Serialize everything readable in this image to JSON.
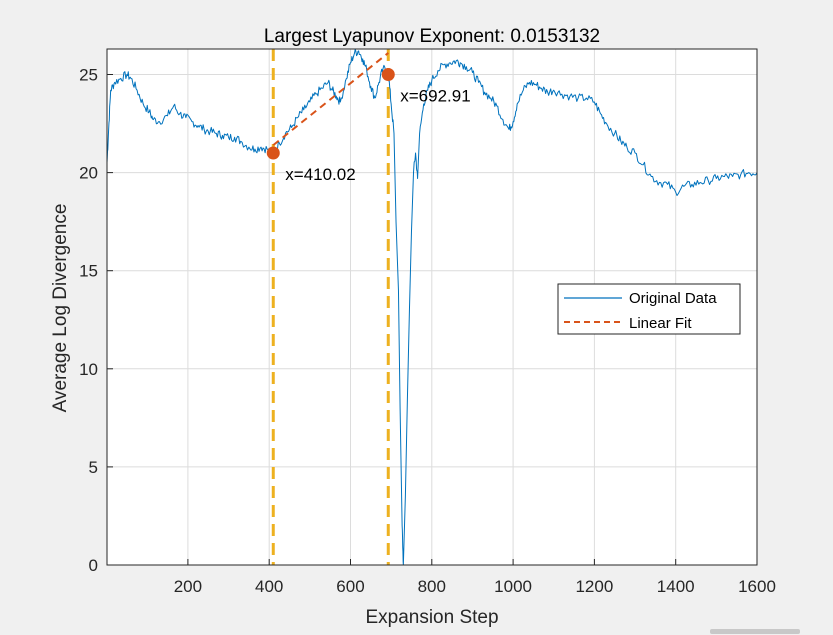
{
  "chart_data": {
    "type": "line",
    "title": "Largest Lyapunov Exponent: 0.0153132",
    "xlabel": "Expansion Step",
    "ylabel": "Average Log Divergence",
    "xlim": [
      1,
      1600
    ],
    "ylim": [
      0,
      26.3
    ],
    "xticks": [
      200,
      400,
      600,
      800,
      1000,
      1200,
      1400,
      1600
    ],
    "yticks": [
      0,
      5,
      10,
      15,
      20,
      25
    ],
    "grid": true,
    "legend_placement": "right",
    "series": [
      {
        "name": "Original Data",
        "color": "#0072BD",
        "points": [
          [
            1,
            20.5
          ],
          [
            5,
            22.2
          ],
          [
            10,
            24.2
          ],
          [
            20,
            24.6
          ],
          [
            35,
            24.8
          ],
          [
            50,
            25.0
          ],
          [
            60,
            24.8
          ],
          [
            75,
            24.2
          ],
          [
            90,
            23.5
          ],
          [
            105,
            23.1
          ],
          [
            115,
            22.7
          ],
          [
            130,
            22.6
          ],
          [
            150,
            22.9
          ],
          [
            165,
            23.4
          ],
          [
            180,
            23.0
          ],
          [
            195,
            22.8
          ],
          [
            210,
            22.6
          ],
          [
            225,
            22.4
          ],
          [
            240,
            22.2
          ],
          [
            255,
            22.1
          ],
          [
            270,
            22.0
          ],
          [
            285,
            21.9
          ],
          [
            300,
            21.8
          ],
          [
            315,
            21.8
          ],
          [
            330,
            21.6
          ],
          [
            350,
            21.3
          ],
          [
            365,
            21.2
          ],
          [
            380,
            21.3
          ],
          [
            395,
            21.2
          ],
          [
            410,
            21.0
          ],
          [
            425,
            21.5
          ],
          [
            440,
            22.0
          ],
          [
            455,
            22.3
          ],
          [
            470,
            22.8
          ],
          [
            485,
            23.2
          ],
          [
            500,
            23.6
          ],
          [
            515,
            24.0
          ],
          [
            530,
            24.3
          ],
          [
            545,
            24.6
          ],
          [
            555,
            24.2
          ],
          [
            565,
            23.9
          ],
          [
            575,
            23.6
          ],
          [
            590,
            24.8
          ],
          [
            600,
            25.6
          ],
          [
            610,
            26.1
          ],
          [
            620,
            26.2
          ],
          [
            630,
            25.8
          ],
          [
            640,
            25.2
          ],
          [
            650,
            24.4
          ],
          [
            660,
            23.8
          ],
          [
            670,
            24.6
          ],
          [
            680,
            25.3
          ],
          [
            693,
            25.1
          ],
          [
            700,
            23.5
          ],
          [
            707,
            22.0
          ],
          [
            712,
            17.5
          ],
          [
            718,
            14.0
          ],
          [
            722,
            8.0
          ],
          [
            727,
            2.0
          ],
          [
            730,
            0.0
          ],
          [
            735,
            3.5
          ],
          [
            740,
            8.5
          ],
          [
            745,
            13.0
          ],
          [
            750,
            17.0
          ],
          [
            755,
            20.0
          ],
          [
            760,
            21.0
          ],
          [
            765,
            19.7
          ],
          [
            770,
            22.0
          ],
          [
            780,
            23.5
          ],
          [
            790,
            24.2
          ],
          [
            800,
            24.7
          ],
          [
            815,
            25.2
          ],
          [
            830,
            25.5
          ],
          [
            845,
            25.6
          ],
          [
            860,
            25.7
          ],
          [
            870,
            25.6
          ],
          [
            885,
            25.4
          ],
          [
            900,
            25.1
          ],
          [
            915,
            24.6
          ],
          [
            930,
            24.1
          ],
          [
            945,
            23.8
          ],
          [
            960,
            23.4
          ],
          [
            975,
            22.7
          ],
          [
            990,
            22.2
          ],
          [
            1000,
            22.6
          ],
          [
            1010,
            23.5
          ],
          [
            1025,
            24.2
          ],
          [
            1040,
            24.6
          ],
          [
            1055,
            24.5
          ],
          [
            1070,
            24.3
          ],
          [
            1085,
            24.1
          ],
          [
            1100,
            24.2
          ],
          [
            1120,
            24.0
          ],
          [
            1140,
            23.9
          ],
          [
            1160,
            23.8
          ],
          [
            1180,
            23.8
          ],
          [
            1200,
            23.6
          ],
          [
            1215,
            23.0
          ],
          [
            1230,
            22.5
          ],
          [
            1250,
            22.0
          ],
          [
            1265,
            21.6
          ],
          [
            1280,
            21.3
          ],
          [
            1300,
            21.0
          ],
          [
            1320,
            20.4
          ],
          [
            1340,
            19.8
          ],
          [
            1360,
            19.5
          ],
          [
            1380,
            19.4
          ],
          [
            1400,
            19.0
          ],
          [
            1420,
            19.3
          ],
          [
            1440,
            19.4
          ],
          [
            1460,
            19.5
          ],
          [
            1480,
            19.6
          ],
          [
            1500,
            19.7
          ],
          [
            1520,
            19.8
          ],
          [
            1540,
            19.8
          ],
          [
            1560,
            19.9
          ],
          [
            1580,
            20.0
          ],
          [
            1600,
            20.0
          ]
        ]
      },
      {
        "name": "Linear Fit",
        "color": "#D95319",
        "style": "dashed",
        "points": [
          [
            410,
            21.4
          ],
          [
            693,
            26.1
          ]
        ]
      }
    ],
    "markers": [
      {
        "x": 410.02,
        "y": 21.0,
        "label": "x=410.02",
        "color": "#D95319"
      },
      {
        "x": 692.91,
        "y": 25.0,
        "label": "x=692.91",
        "color": "#D95319"
      }
    ],
    "vertical_lines": [
      {
        "x": 410.02,
        "color": "#EDB120",
        "style": "dashed"
      },
      {
        "x": 692.91,
        "color": "#EDB120",
        "style": "dashed"
      }
    ]
  }
}
